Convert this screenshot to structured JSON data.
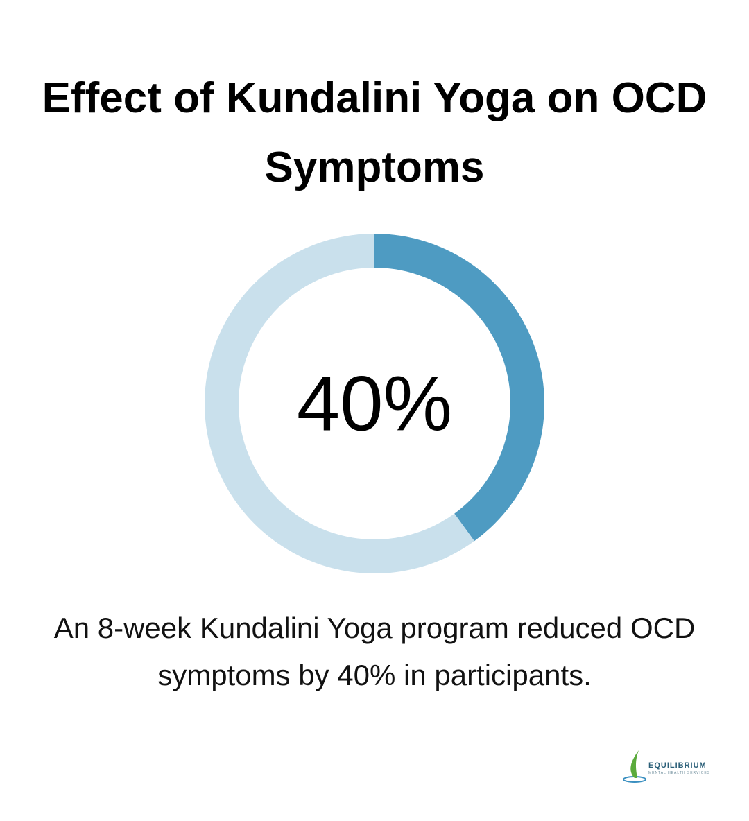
{
  "chart_data": {
    "type": "donut",
    "title": "Effect of Kundalini Yoga on OCD Symptoms",
    "values": [
      40,
      60
    ],
    "value_labels": [
      "40%",
      null
    ],
    "colors": [
      "#4e9bc2",
      "#c9e0ec"
    ],
    "caption": "An 8-week Kundalini Yoga program reduced OCD symptoms by 40% in participants."
  },
  "logo": {
    "name": "EQUILIBRIUM",
    "tagline": "MENTAL HEALTH SERVICES"
  }
}
